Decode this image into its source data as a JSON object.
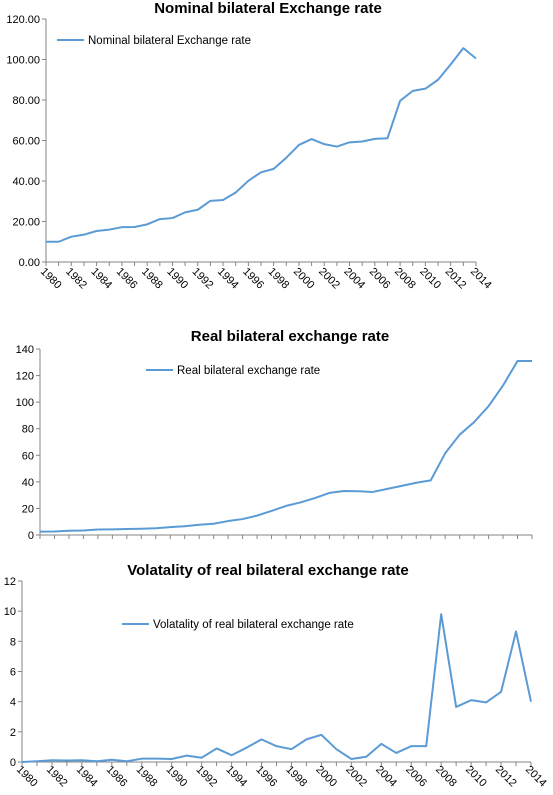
{
  "colors": {
    "series": "#5b9bd5"
  },
  "chart_data": [
    {
      "type": "line",
      "title": "Nominal bilateral Exchange rate",
      "xlabel": "",
      "ylabel": "",
      "ylim": [
        0,
        120
      ],
      "yticks": [
        "0.00",
        "20.00",
        "40.00",
        "60.00",
        "80.00",
        "100.00",
        "120.00"
      ],
      "xtick_labels": [
        "1980",
        "1982",
        "1984",
        "1986",
        "1988",
        "1990",
        "1992",
        "1994",
        "1996",
        "1998",
        "2000",
        "2002",
        "2004",
        "2006",
        "2008",
        "2010",
        "2012",
        "2014"
      ],
      "legend_position": "top-left",
      "x": [
        1980,
        1981,
        1982,
        1983,
        1984,
        1985,
        1986,
        1987,
        1988,
        1989,
        1990,
        1991,
        1992,
        1993,
        1994,
        1995,
        1996,
        1997,
        1998,
        1999,
        2000,
        2001,
        2002,
        2003,
        2004,
        2005,
        2006,
        2007,
        2008,
        2009,
        2010,
        2011,
        2012,
        2013,
        2014
      ],
      "series": [
        {
          "name": "Nominal bilateral Exchange rate",
          "values": [
            10.0,
            10.0,
            12.5,
            13.5,
            15.3,
            16.0,
            17.2,
            17.3,
            18.6,
            21.2,
            21.7,
            24.5,
            25.8,
            30.2,
            30.6,
            34.3,
            40.1,
            44.3,
            46.0,
            51.5,
            57.8,
            60.7,
            58.2,
            57.0,
            59.1,
            59.5,
            60.8,
            61.1,
            79.6,
            84.5,
            85.6,
            90.0,
            97.6,
            105.6,
            100.5
          ]
        }
      ]
    },
    {
      "type": "line",
      "title": "Real bilateral exchange rate",
      "xlabel": "",
      "ylabel": "",
      "ylim": [
        0,
        140
      ],
      "yticks": [
        "0",
        "20",
        "40",
        "60",
        "80",
        "100",
        "120",
        "140"
      ],
      "xtick_labels": [],
      "legend_position": "top-center",
      "x": [
        1980,
        1981,
        1982,
        1983,
        1984,
        1985,
        1986,
        1987,
        1988,
        1989,
        1990,
        1991,
        1992,
        1993,
        1994,
        1995,
        1996,
        1997,
        1998,
        1999,
        2000,
        2001,
        2002,
        2003,
        2004,
        2005,
        2006,
        2007,
        2008,
        2009,
        2010,
        2011,
        2012,
        2013,
        2014
      ],
      "series": [
        {
          "name": "Real bilateral exchange rate",
          "values": [
            2.5,
            2.6,
            3.2,
            3.4,
            4.1,
            4.2,
            4.5,
            4.7,
            5.1,
            5.9,
            6.6,
            7.7,
            8.5,
            10.5,
            12.0,
            14.6,
            18.1,
            21.9,
            24.5,
            27.8,
            31.7,
            33.1,
            32.9,
            32.4,
            34.7,
            37.0,
            39.3,
            41.1,
            61.5,
            75.5,
            85.0,
            97.0,
            112.6,
            131.0,
            131.0
          ]
        }
      ]
    },
    {
      "type": "line",
      "title": "Volatality of real bilateral exchange rate",
      "xlabel": "",
      "ylabel": "",
      "ylim": [
        0,
        12
      ],
      "yticks": [
        "0",
        "2",
        "4",
        "6",
        "8",
        "10",
        "12"
      ],
      "xtick_labels": [
        "1980",
        "1982",
        "1984",
        "1986",
        "1988",
        "1990",
        "1992",
        "1994",
        "1996",
        "1998",
        "2000",
        "2002",
        "2004",
        "2006",
        "2008",
        "2010",
        "2012",
        "2014"
      ],
      "legend_position": "top-left",
      "x": [
        1980,
        1981,
        1982,
        1983,
        1984,
        1985,
        1986,
        1987,
        1988,
        1989,
        1990,
        1991,
        1992,
        1993,
        1994,
        1995,
        1996,
        1997,
        1998,
        1999,
        2000,
        2001,
        2002,
        2003,
        2004,
        2005,
        2006,
        2007,
        2008,
        2009,
        2010,
        2011,
        2012,
        2013,
        2014
      ],
      "series": [
        {
          "name": "Volatality of real bilateral exchange rate",
          "values": [
            0.0,
            0.05,
            0.12,
            0.1,
            0.12,
            0.05,
            0.15,
            0.05,
            0.22,
            0.22,
            0.2,
            0.42,
            0.28,
            0.9,
            0.45,
            0.95,
            1.5,
            1.05,
            0.85,
            1.5,
            1.8,
            0.85,
            0.2,
            0.35,
            1.2,
            0.6,
            1.05,
            1.05,
            9.8,
            3.65,
            4.1,
            3.95,
            4.65,
            8.65,
            4.0
          ]
        }
      ]
    }
  ]
}
